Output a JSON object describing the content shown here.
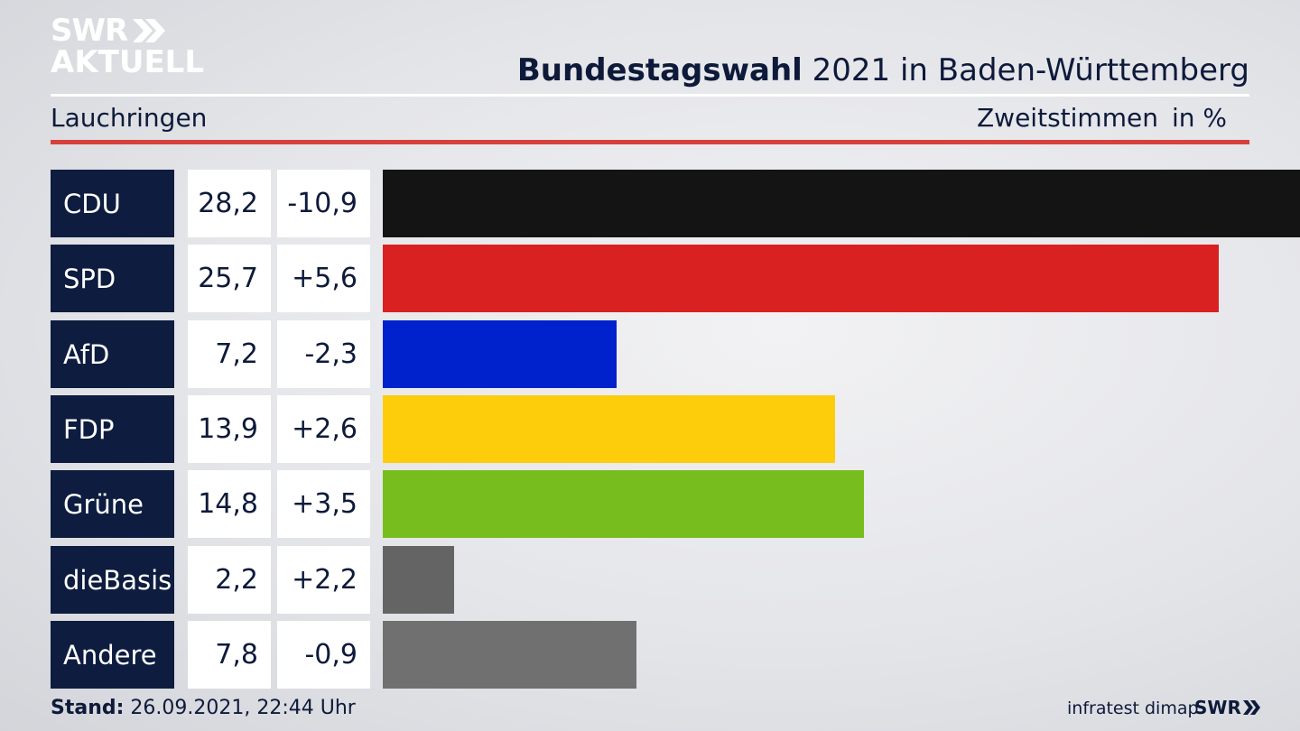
{
  "brand": {
    "line1": "SWR",
    "line2": "AKTUELL",
    "footer_logo": "SWR"
  },
  "header": {
    "title_strong": "Bundestagswahl",
    "title_rest": " 2021 in Baden-Württemberg",
    "location": "Lauchringen",
    "votes_label": "Zweitstimmen",
    "unit_label": "in %"
  },
  "colors": {
    "accent_red": "#d6413b",
    "navy": "#0d1c3f"
  },
  "chart_data": {
    "type": "bar",
    "orientation": "horizontal",
    "categories": [
      "CDU",
      "SPD",
      "AfD",
      "FDP",
      "Grüne",
      "dieBasis",
      "Andere"
    ],
    "values": [
      28.2,
      25.7,
      7.2,
      13.9,
      14.8,
      2.2,
      7.8
    ],
    "value_labels": [
      "28,2",
      "25,7",
      "7,2",
      "13,9",
      "14,8",
      "2,2",
      "7,8"
    ],
    "changes": [
      "-10,9",
      "+5,6",
      "-2,3",
      "+2,6",
      "+3,5",
      "+2,2",
      "-0,9"
    ],
    "colors": [
      "#141414",
      "#d92121",
      "#0022cc",
      "#fdcc0a",
      "#78bd1e",
      "#646464",
      "#707070"
    ],
    "xlim": [
      0,
      28.2
    ]
  },
  "footer": {
    "stand_label": "Stand:",
    "stand_value": " 26.09.2021, 22:44 Uhr",
    "source": "infratest dimap"
  }
}
